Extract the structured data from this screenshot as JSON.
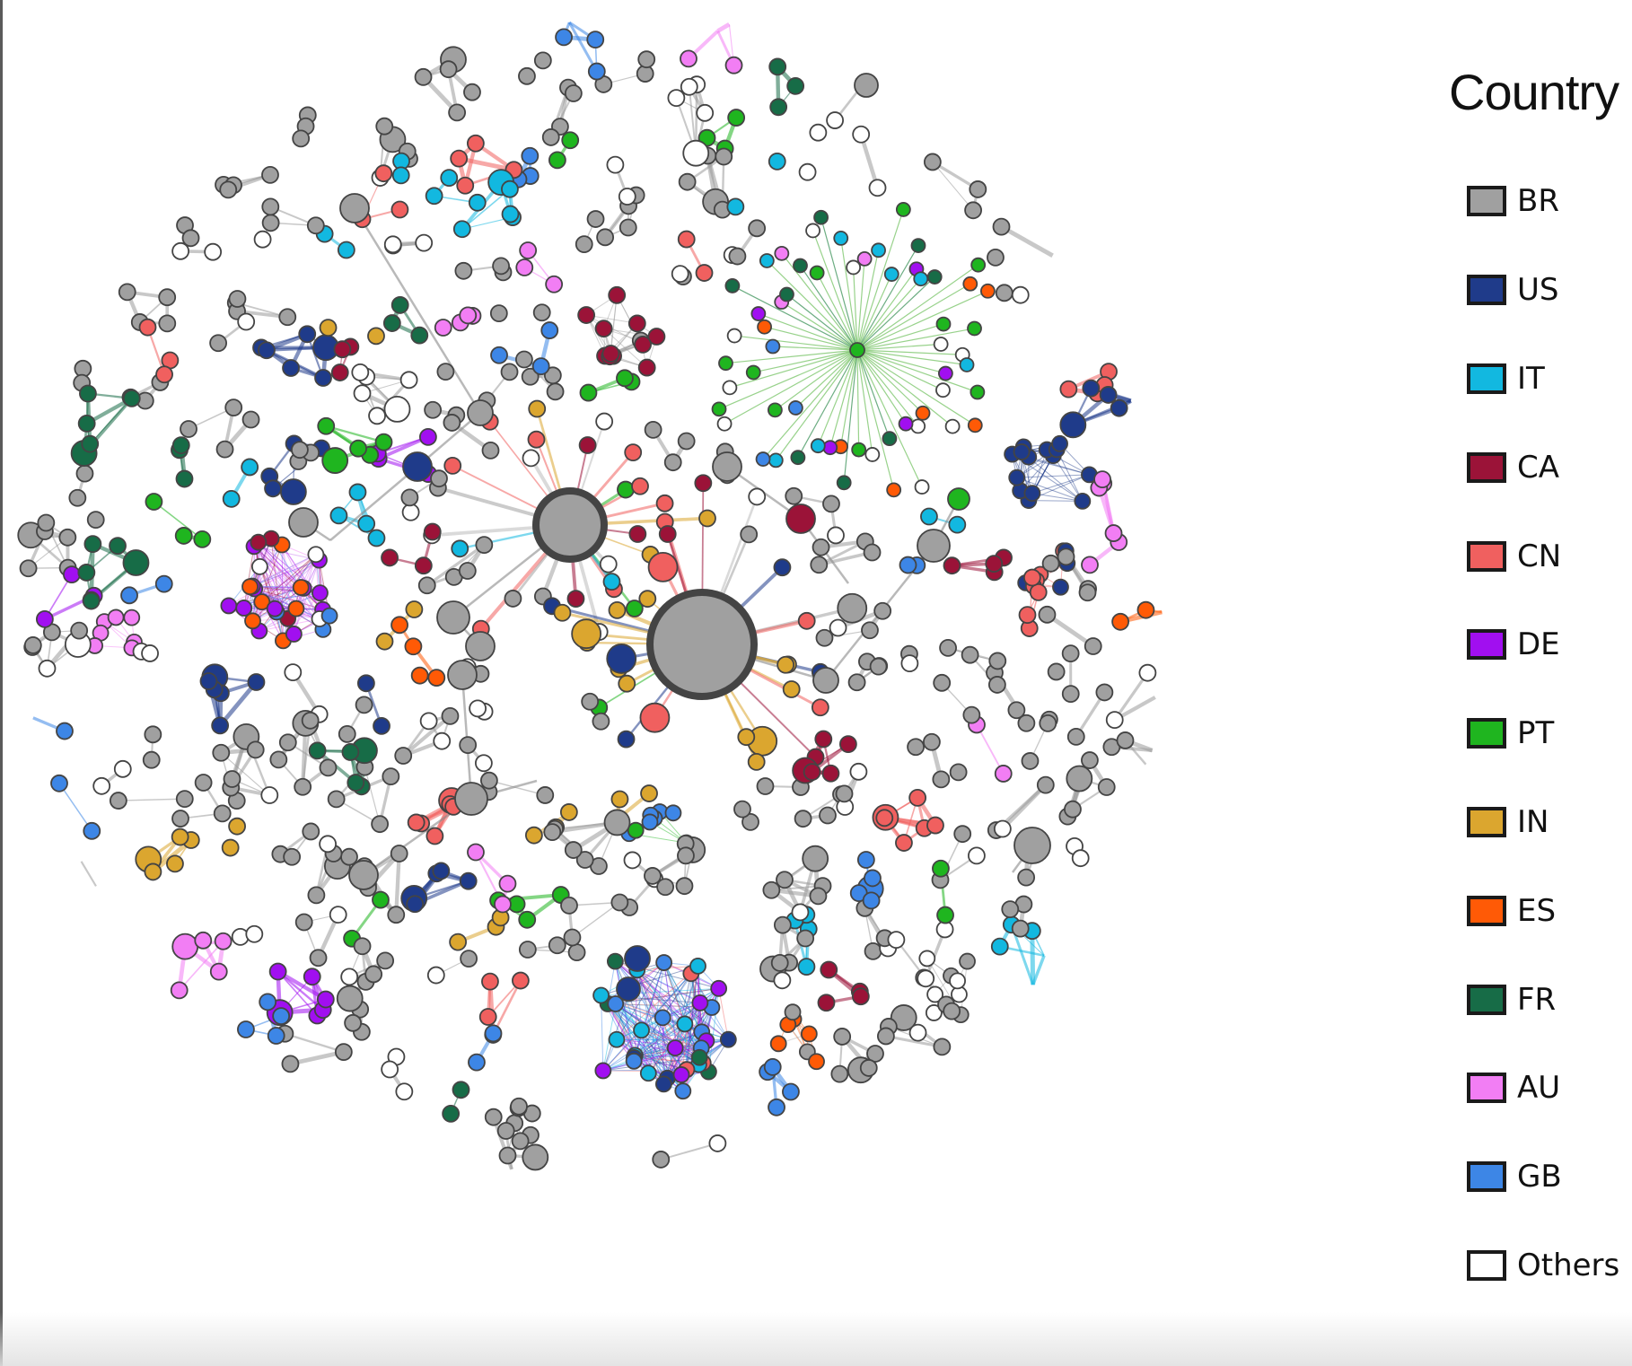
{
  "legend": {
    "title": "Country",
    "items": [
      {
        "label": "BR",
        "color": "#a0a0a0"
      },
      {
        "label": "US",
        "color": "#1f3b8a"
      },
      {
        "label": "IT",
        "color": "#12b8e0"
      },
      {
        "label": "CA",
        "color": "#9b1338"
      },
      {
        "label": "CN",
        "color": "#f0605f"
      },
      {
        "label": "DE",
        "color": "#a10ff0"
      },
      {
        "label": "PT",
        "color": "#1fb51f"
      },
      {
        "label": "IN",
        "color": "#dba62f"
      },
      {
        "label": "ES",
        "color": "#ff5a06"
      },
      {
        "label": "FR",
        "color": "#176c47"
      },
      {
        "label": "AU",
        "color": "#f27ef4"
      },
      {
        "label": "GB",
        "color": "#3d86e6"
      },
      {
        "label": "Others",
        "color": "#ffffff"
      }
    ]
  },
  "chart_data": {
    "type": "network",
    "node_categories": [
      "BR",
      "US",
      "IT",
      "CA",
      "CN",
      "DE",
      "PT",
      "IN",
      "ES",
      "FR",
      "AU",
      "GB",
      "Others"
    ],
    "category_colors": {
      "BR": "#a0a0a0",
      "US": "#1f3b8a",
      "IT": "#12b8e0",
      "CA": "#9b1338",
      "CN": "#f0605f",
      "DE": "#a10ff0",
      "PT": "#1fb51f",
      "IN": "#dba62f",
      "ES": "#ff5a06",
      "FR": "#176c47",
      "AU": "#f27ef4",
      "GB": "#3d86e6",
      "Others": "#ffffff"
    },
    "node_stroke": "#444444"
  }
}
